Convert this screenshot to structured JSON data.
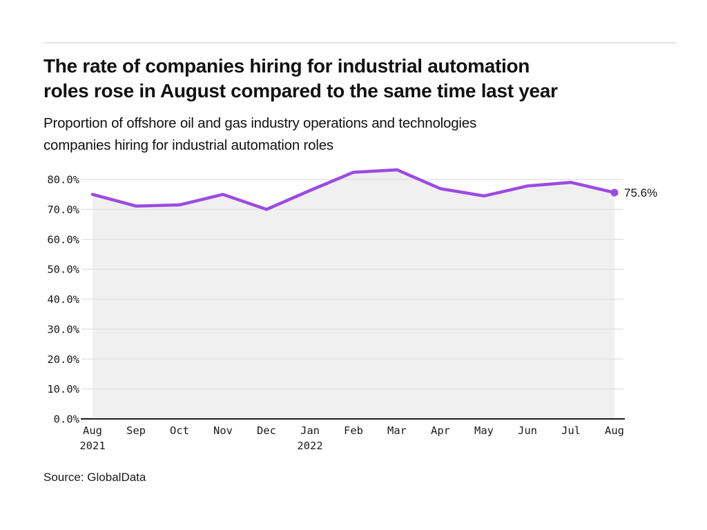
{
  "header": {
    "title_line1": "The rate of companies hiring for industrial automation",
    "title_line2": "roles rose in August compared to the same time last year",
    "subtitle_line1": "Proportion of offshore oil and gas industry operations and technologies",
    "subtitle_line2": "companies hiring for industrial automation roles"
  },
  "footer": {
    "source": "Source: GlobalData"
  },
  "chart_data": {
    "type": "line",
    "title": "The rate of companies hiring for industrial automation roles rose in August compared to the same time last year",
    "subtitle": "Proportion of offshore oil and gas industry operations and technologies companies hiring for industrial automation roles",
    "categories": [
      "Aug 2021",
      "Sep",
      "Oct",
      "Nov",
      "Dec",
      "Jan 2022",
      "Feb",
      "Mar",
      "Apr",
      "May",
      "Jun",
      "Jul",
      "Aug"
    ],
    "x_ticks": [
      {
        "m": "Aug",
        "y": "2021"
      },
      {
        "m": "Sep",
        "y": ""
      },
      {
        "m": "Oct",
        "y": ""
      },
      {
        "m": "Nov",
        "y": ""
      },
      {
        "m": "Dec",
        "y": ""
      },
      {
        "m": "Jan",
        "y": "2022"
      },
      {
        "m": "Feb",
        "y": ""
      },
      {
        "m": "Mar",
        "y": ""
      },
      {
        "m": "Apr",
        "y": ""
      },
      {
        "m": "May",
        "y": ""
      },
      {
        "m": "Jun",
        "y": ""
      },
      {
        "m": "Jul",
        "y": ""
      },
      {
        "m": "Aug",
        "y": ""
      }
    ],
    "series": [
      {
        "name": "Proportion of companies hiring for industrial automation roles",
        "values": [
          75.0,
          71.1,
          71.5,
          75.0,
          70.0,
          76.3,
          82.4,
          83.2,
          76.9,
          74.5,
          77.8,
          79.0,
          75.6
        ]
      }
    ],
    "end_label": "75.6%",
    "y_ticks": [
      {
        "label": "0.0%",
        "value": 0
      },
      {
        "label": "10.0%",
        "value": 10
      },
      {
        "label": "20.0%",
        "value": 20
      },
      {
        "label": "30.0%",
        "value": 30
      },
      {
        "label": "40.0%",
        "value": 40
      },
      {
        "label": "50.0%",
        "value": 50
      },
      {
        "label": "60.0%",
        "value": 60
      },
      {
        "label": "70.0%",
        "value": 70
      },
      {
        "label": "80.0%",
        "value": 80
      }
    ],
    "ylim": [
      0,
      85
    ],
    "grid": "horizontal",
    "legend": "none",
    "line_color": "#9c4be2",
    "area_fill": "#f0f0f0",
    "grid_color": "#e3e3e3",
    "axis_color": "#1a1a1a"
  }
}
